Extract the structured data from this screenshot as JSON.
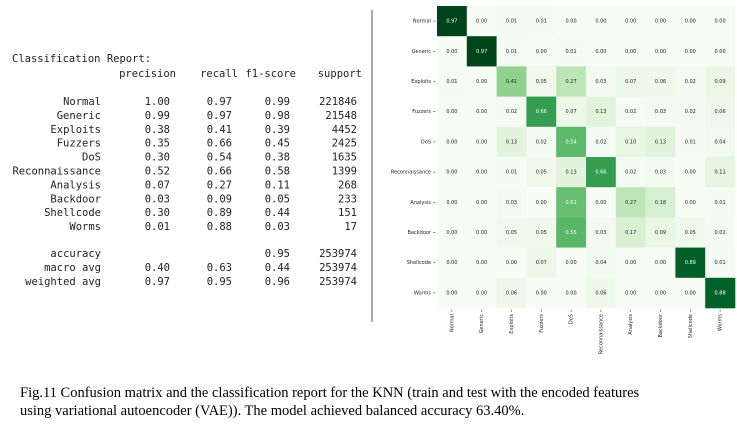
{
  "report": {
    "title": "Classification Report:",
    "headers": {
      "precision": "precision",
      "recall": "recall",
      "f1": "f1-score",
      "support": "support"
    },
    "rows": [
      {
        "label": "Normal",
        "precision": "1.00",
        "recall": "0.97",
        "f1": "0.99",
        "support": 221846
      },
      {
        "label": "Generic",
        "precision": "0.99",
        "recall": "0.97",
        "f1": "0.98",
        "support": 21548
      },
      {
        "label": "Exploits",
        "precision": "0.38",
        "recall": "0.41",
        "f1": "0.39",
        "support": 4452
      },
      {
        "label": "Fuzzers",
        "precision": "0.35",
        "recall": "0.66",
        "f1": "0.45",
        "support": 2425
      },
      {
        "label": "DoS",
        "precision": "0.30",
        "recall": "0.54",
        "f1": "0.38",
        "support": 1635
      },
      {
        "label": "Reconnaissance",
        "precision": "0.52",
        "recall": "0.66",
        "f1": "0.58",
        "support": 1399
      },
      {
        "label": "Analysis",
        "precision": "0.07",
        "recall": "0.27",
        "f1": "0.11",
        "support": 268
      },
      {
        "label": "Backdoor",
        "precision": "0.03",
        "recall": "0.09",
        "f1": "0.05",
        "support": 233
      },
      {
        "label": "Shellcode",
        "precision": "0.30",
        "recall": "0.89",
        "f1": "0.44",
        "support": 151
      },
      {
        "label": "Worms",
        "precision": "0.01",
        "recall": "0.88",
        "f1": "0.03",
        "support": 17
      }
    ],
    "summary": [
      {
        "label": "accuracy",
        "f1": "0.95",
        "support": 253974
      },
      {
        "label": "macro avg",
        "precision": "0.40",
        "recall": "0.63",
        "f1": "0.44",
        "support": 253974
      },
      {
        "label": "weighted avg",
        "precision": "0.97",
        "recall": "0.95",
        "f1": "0.96",
        "support": 253974
      }
    ]
  },
  "chart_data": {
    "type": "heatmap",
    "colormap": "Greens",
    "rows": [
      "Normal",
      "Generic",
      "Exploits",
      "Fuzzers",
      "DoS",
      "Reconnaissance",
      "Analysis",
      "Backdoor",
      "Shellcode",
      "Worms"
    ],
    "columns": [
      "Normal",
      "Generic",
      "Exploits",
      "Fuzzers",
      "DoS",
      "Reconnaissance",
      "Analysis",
      "Backdoor",
      "Shellcode",
      "Worms"
    ],
    "values": [
      [
        0.97,
        0,
        0.01,
        0.01,
        0,
        0,
        0,
        0,
        0,
        0
      ],
      [
        0,
        0.97,
        0.01,
        0,
        0.01,
        0,
        0,
        0,
        0,
        0
      ],
      [
        0.01,
        0,
        0.41,
        0.05,
        0.27,
        0.03,
        0.07,
        0.06,
        0.02,
        0.09
      ],
      [
        0,
        0,
        0.02,
        0.66,
        0.07,
        0.13,
        0.02,
        0.03,
        0.02,
        0.06
      ],
      [
        0,
        0,
        0.13,
        0.02,
        0.54,
        0.02,
        0.1,
        0.13,
        0.01,
        0.04
      ],
      [
        0,
        0,
        0.01,
        0.05,
        0.13,
        0.66,
        0.02,
        0.03,
        0,
        0.11
      ],
      [
        0,
        0,
        0.03,
        0,
        0.51,
        0,
        0.27,
        0.18,
        0,
        0.01
      ],
      [
        0,
        0,
        0.05,
        0.05,
        0.55,
        0.03,
        0.17,
        0.09,
        0.05,
        0.02
      ],
      [
        0,
        0,
        0,
        0.07,
        0,
        0.04,
        0,
        0,
        0.89,
        0.01
      ],
      [
        0,
        0,
        0.06,
        0,
        0,
        0.06,
        0,
        0,
        0,
        0.88
      ]
    ],
    "value_labels": [
      [
        "0.97",
        "0.00",
        "0.01",
        "0.01",
        "0.00",
        "0.00",
        "0.00",
        "0.00",
        "0.00",
        "0.00"
      ],
      [
        "0.00",
        "0.97",
        "0.01",
        "0.00",
        "0.01",
        "0.00",
        "0.00",
        "0.00",
        "0.00",
        "0.00"
      ],
      [
        "0.01",
        "0.00",
        "0.41",
        "0.05",
        "0.27",
        "0.03",
        "0.07",
        "0.06",
        "0.02",
        "0.09"
      ],
      [
        "0.00",
        "0.00",
        "0.02",
        "0.66",
        "0.07",
        "0.13",
        "0.02",
        "0.03",
        "0.02",
        "0.06"
      ],
      [
        "0.00",
        "0.00",
        "0.13",
        "0.02",
        "0.54",
        "0.02",
        "0.10",
        "0.13",
        "0.01",
        "0.04"
      ],
      [
        "0.00",
        "0.00",
        "0.01",
        "0.05",
        "0.13",
        "0.66",
        "0.02",
        "0.03",
        "0.00",
        "0.11"
      ],
      [
        "0.00",
        "0.00",
        "0.03",
        "0.00",
        "0.51",
        "0.00",
        "0.27",
        "0.18",
        "0.00",
        "0.01"
      ],
      [
        "0.00",
        "0.00",
        "0.05",
        "0.05",
        "0.55",
        "0.03",
        "0.17",
        "0.09",
        "0.05",
        "0.02"
      ],
      [
        "0.00",
        "0.00",
        "0.00",
        "0.07",
        "0.00",
        "0.04",
        "0.00",
        "0.00",
        "0.89",
        "0.01"
      ],
      [
        "0.00",
        "0.00",
        "0.06",
        "0.00",
        "0.00",
        "0.06",
        "0.00",
        "0.00",
        "0.00",
        "0.88"
      ]
    ]
  },
  "caption": [
    "Fig.11 Confusion matrix and the classification report for the KNN (train and test with the encoded features",
    "using variational autoencoder (VAE)). The model achieved balanced accuracy 63.40%."
  ]
}
